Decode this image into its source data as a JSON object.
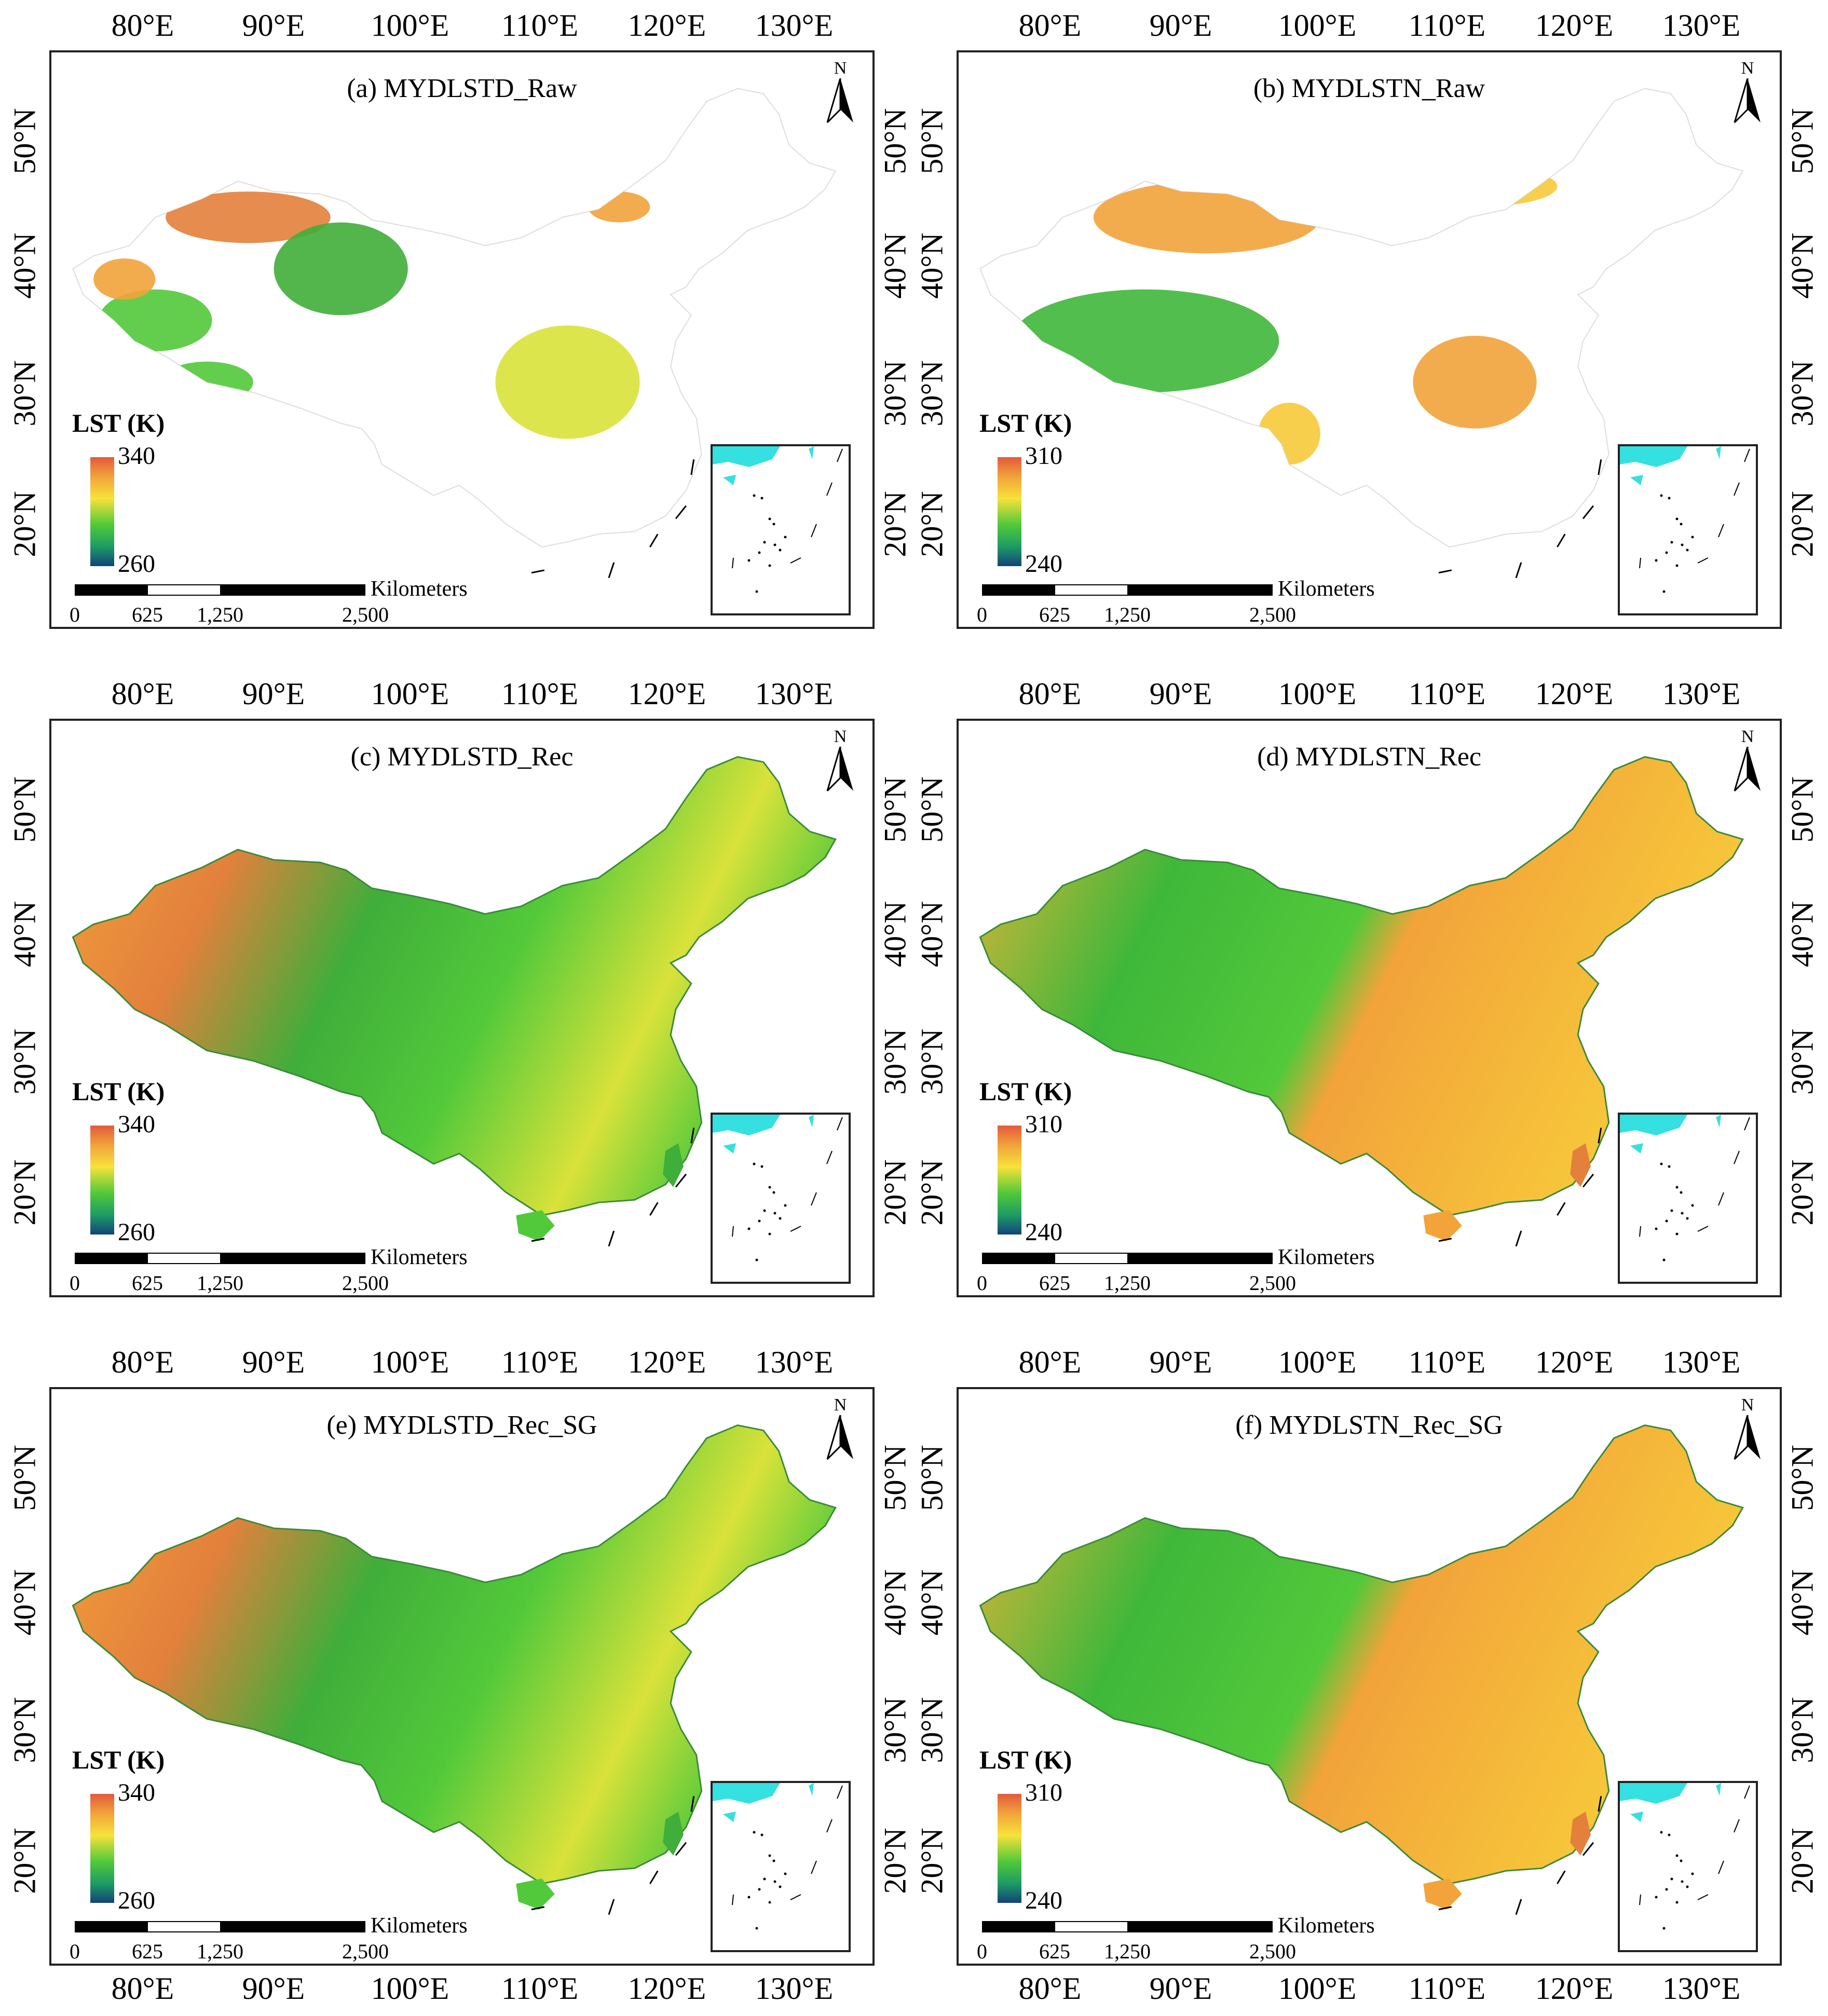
{
  "figure": {
    "lon_ticks": [
      "80°E",
      "90°E",
      "100°E",
      "110°E",
      "120°E",
      "130°E"
    ],
    "lat_ticks": [
      "50°N",
      "40°N",
      "30°N",
      "20°N"
    ],
    "north_letter": "N",
    "legend_title": "LST (K)",
    "scale_unit": "Kilometers",
    "scale_ticks": [
      "0",
      "625",
      "1,250",
      "2,500"
    ],
    "colors": {
      "hot": "#e3593c",
      "warm": "#f2a33a",
      "mid": "#f7e23a",
      "cool": "#52c93a",
      "cold": "#12427a",
      "inset_sea": "#34e0e0"
    }
  },
  "panels": [
    {
      "id": "a",
      "title": "(a) MYDLSTD_Raw",
      "cbar_max": "340",
      "cbar_min": "260",
      "coverage": "partial",
      "palette": "day"
    },
    {
      "id": "b",
      "title": "(b) MYDLSTN_Raw",
      "cbar_max": "310",
      "cbar_min": "240",
      "coverage": "partial",
      "palette": "night"
    },
    {
      "id": "c",
      "title": "(c) MYDLSTD_Rec",
      "cbar_max": "340",
      "cbar_min": "260",
      "coverage": "full",
      "palette": "day"
    },
    {
      "id": "d",
      "title": "(d) MYDLSTN_Rec",
      "cbar_max": "310",
      "cbar_min": "240",
      "coverage": "full",
      "palette": "night"
    },
    {
      "id": "e",
      "title": "(e) MYDLSTD_Rec_SG",
      "cbar_max": "340",
      "cbar_min": "260",
      "coverage": "full",
      "palette": "day"
    },
    {
      "id": "f",
      "title": "(f) MYDLSTN_Rec_SG",
      "cbar_max": "310",
      "cbar_min": "240",
      "coverage": "full",
      "palette": "night"
    }
  ]
}
